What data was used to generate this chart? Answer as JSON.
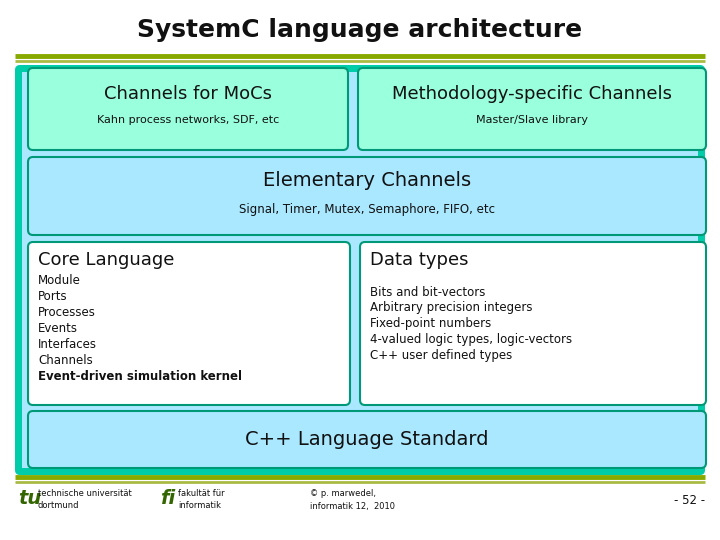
{
  "title": "SystemC language architecture",
  "title_fontsize": 18,
  "title_fontweight": "bold",
  "bg_color": "#ffffff",
  "outer_box_color": "#00ccaa",
  "inner_bg_color": "#aae8ff",
  "green_cell_color": "#99ffdd",
  "green_cell_border": "#009977",
  "white_cell_color": "#ffffff",
  "header_line_color1": "#88aa00",
  "header_line_color2": "#aabb44",
  "box1_title": "Channels for MoCs",
  "box1_subtitle": "Kahn process networks, SDF, etc",
  "box2_title": "Methodology-specific Channels",
  "box2_subtitle": "Master/Slave library",
  "elem_title": "Elementary Channels",
  "elem_subtitle": "Signal, Timer, Mutex, Semaphore, FIFO, etc",
  "core_title": "Core Language",
  "core_items": [
    "Module",
    "Ports",
    "Processes",
    "Events",
    "Interfaces",
    "Channels"
  ],
  "core_bold": "Event-driven simulation kernel",
  "data_title": "Data types",
  "data_items": [
    "Bits and bit-vectors",
    "Arbitrary precision integers",
    "Fixed-point numbers",
    "4-valued logic types, logic-vectors",
    "C++ user defined types"
  ],
  "cpp_title": "C++ Language Standard",
  "footer_left1": "technische universität",
  "footer_left2": "dortmund",
  "footer_mid1": "fakultät für",
  "footer_mid2": "informatik",
  "footer_copy1": "© p. marwedel,",
  "footer_copy2": "informatik 12,  2010",
  "footer_page": "- 52 -",
  "text_dark": "#111111",
  "text_green": "#336600"
}
